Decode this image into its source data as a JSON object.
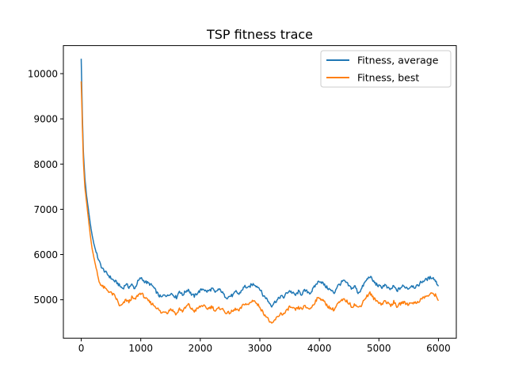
{
  "chart_data": {
    "type": "line",
    "title": "TSP fitness trace",
    "xlabel": "",
    "ylabel": "",
    "xlim": [
      -300,
      6300
    ],
    "ylim": [
      4150,
      10620
    ],
    "x_ticks": [
      0,
      1000,
      2000,
      3000,
      4000,
      5000,
      6000
    ],
    "y_ticks": [
      5000,
      6000,
      7000,
      8000,
      9000,
      10000
    ],
    "grid": false,
    "legend_position": "top-right",
    "series": [
      {
        "name": "Fitness, average",
        "color": "#1f77b4",
        "points": [
          [
            0,
            10330
          ],
          [
            15,
            9300
          ],
          [
            35,
            8300
          ],
          [
            60,
            7700
          ],
          [
            90,
            7300
          ],
          [
            120,
            7000
          ],
          [
            150,
            6700
          ],
          [
            180,
            6450
          ],
          [
            210,
            6250
          ],
          [
            250,
            6050
          ],
          [
            300,
            5850
          ],
          [
            350,
            5700
          ],
          [
            400,
            5620
          ],
          [
            450,
            5550
          ],
          [
            500,
            5480
          ],
          [
            550,
            5420
          ],
          [
            600,
            5380
          ],
          [
            650,
            5300
          ],
          [
            700,
            5250
          ],
          [
            750,
            5350
          ],
          [
            800,
            5280
          ],
          [
            850,
            5330
          ],
          [
            900,
            5250
          ],
          [
            950,
            5400
          ],
          [
            1000,
            5480
          ],
          [
            1050,
            5420
          ],
          [
            1100,
            5380
          ],
          [
            1150,
            5350
          ],
          [
            1200,
            5300
          ],
          [
            1250,
            5200
          ],
          [
            1300,
            5100
          ],
          [
            1350,
            5050
          ],
          [
            1400,
            5120
          ],
          [
            1450,
            5080
          ],
          [
            1500,
            5150
          ],
          [
            1550,
            5100
          ],
          [
            1600,
            5050
          ],
          [
            1650,
            5200
          ],
          [
            1700,
            5100
          ],
          [
            1750,
            5180
          ],
          [
            1800,
            5230
          ],
          [
            1850,
            5120
          ],
          [
            1900,
            5080
          ],
          [
            1950,
            5150
          ],
          [
            2000,
            5200
          ],
          [
            2050,
            5250
          ],
          [
            2100,
            5180
          ],
          [
            2150,
            5200
          ],
          [
            2200,
            5250
          ],
          [
            2250,
            5150
          ],
          [
            2300,
            5230
          ],
          [
            2350,
            5200
          ],
          [
            2400,
            5100
          ],
          [
            2450,
            5050
          ],
          [
            2500,
            5080
          ],
          [
            2550,
            5100
          ],
          [
            2600,
            5180
          ],
          [
            2650,
            5120
          ],
          [
            2700,
            5220
          ],
          [
            2750,
            5300
          ],
          [
            2800,
            5250
          ],
          [
            2850,
            5320
          ],
          [
            2900,
            5350
          ],
          [
            2950,
            5300
          ],
          [
            3000,
            5250
          ],
          [
            3050,
            5100
          ],
          [
            3100,
            5050
          ],
          [
            3150,
            4950
          ],
          [
            3200,
            4870
          ],
          [
            3250,
            4950
          ],
          [
            3300,
            5000
          ],
          [
            3350,
            5080
          ],
          [
            3400,
            5050
          ],
          [
            3450,
            5150
          ],
          [
            3500,
            5200
          ],
          [
            3550,
            5150
          ],
          [
            3600,
            5100
          ],
          [
            3650,
            5180
          ],
          [
            3700,
            5120
          ],
          [
            3750,
            5200
          ],
          [
            3800,
            5180
          ],
          [
            3850,
            5150
          ],
          [
            3900,
            5250
          ],
          [
            3950,
            5350
          ],
          [
            4000,
            5420
          ],
          [
            4050,
            5380
          ],
          [
            4100,
            5300
          ],
          [
            4150,
            5250
          ],
          [
            4200,
            5200
          ],
          [
            4250,
            5150
          ],
          [
            4300,
            5300
          ],
          [
            4350,
            5350
          ],
          [
            4400,
            5420
          ],
          [
            4450,
            5380
          ],
          [
            4500,
            5300
          ],
          [
            4550,
            5250
          ],
          [
            4600,
            5300
          ],
          [
            4650,
            5150
          ],
          [
            4700,
            5220
          ],
          [
            4750,
            5350
          ],
          [
            4800,
            5450
          ],
          [
            4850,
            5520
          ],
          [
            4900,
            5420
          ],
          [
            4950,
            5350
          ],
          [
            5000,
            5300
          ],
          [
            5050,
            5280
          ],
          [
            5100,
            5330
          ],
          [
            5150,
            5250
          ],
          [
            5200,
            5230
          ],
          [
            5250,
            5300
          ],
          [
            5300,
            5200
          ],
          [
            5350,
            5250
          ],
          [
            5400,
            5300
          ],
          [
            5450,
            5280
          ],
          [
            5500,
            5250
          ],
          [
            5550,
            5320
          ],
          [
            5600,
            5280
          ],
          [
            5650,
            5300
          ],
          [
            5700,
            5380
          ],
          [
            5750,
            5420
          ],
          [
            5800,
            5450
          ],
          [
            5850,
            5480
          ],
          [
            5900,
            5500
          ],
          [
            5950,
            5420
          ],
          [
            6000,
            5300
          ]
        ]
      },
      {
        "name": "Fitness, best",
        "color": "#ff7f0e",
        "points": [
          [
            0,
            9830
          ],
          [
            15,
            9050
          ],
          [
            35,
            8100
          ],
          [
            60,
            7500
          ],
          [
            90,
            7150
          ],
          [
            120,
            6800
          ],
          [
            150,
            6450
          ],
          [
            180,
            6150
          ],
          [
            210,
            5950
          ],
          [
            250,
            5700
          ],
          [
            300,
            5400
          ],
          [
            350,
            5300
          ],
          [
            400,
            5250
          ],
          [
            450,
            5200
          ],
          [
            500,
            5150
          ],
          [
            550,
            5100
          ],
          [
            600,
            5000
          ],
          [
            650,
            4850
          ],
          [
            700,
            4900
          ],
          [
            750,
            5000
          ],
          [
            800,
            4950
          ],
          [
            850,
            5050
          ],
          [
            900,
            5000
          ],
          [
            950,
            5100
          ],
          [
            1000,
            5150
          ],
          [
            1050,
            5080
          ],
          [
            1100,
            5000
          ],
          [
            1150,
            4950
          ],
          [
            1200,
            4900
          ],
          [
            1250,
            4850
          ],
          [
            1300,
            4780
          ],
          [
            1350,
            4700
          ],
          [
            1400,
            4750
          ],
          [
            1450,
            4720
          ],
          [
            1500,
            4800
          ],
          [
            1550,
            4750
          ],
          [
            1600,
            4680
          ],
          [
            1650,
            4800
          ],
          [
            1700,
            4750
          ],
          [
            1750,
            4820
          ],
          [
            1800,
            4900
          ],
          [
            1850,
            4800
          ],
          [
            1900,
            4750
          ],
          [
            1950,
            4800
          ],
          [
            2000,
            4850
          ],
          [
            2050,
            4880
          ],
          [
            2100,
            4800
          ],
          [
            2150,
            4820
          ],
          [
            2200,
            4850
          ],
          [
            2250,
            4750
          ],
          [
            2300,
            4800
          ],
          [
            2350,
            4820
          ],
          [
            2400,
            4750
          ],
          [
            2450,
            4700
          ],
          [
            2500,
            4720
          ],
          [
            2550,
            4750
          ],
          [
            2600,
            4800
          ],
          [
            2650,
            4750
          ],
          [
            2700,
            4850
          ],
          [
            2750,
            4920
          ],
          [
            2800,
            4880
          ],
          [
            2850,
            4950
          ],
          [
            2900,
            5000
          ],
          [
            2950,
            4900
          ],
          [
            3000,
            4850
          ],
          [
            3050,
            4720
          ],
          [
            3100,
            4650
          ],
          [
            3150,
            4550
          ],
          [
            3200,
            4450
          ],
          [
            3250,
            4550
          ],
          [
            3300,
            4620
          ],
          [
            3350,
            4700
          ],
          [
            3400,
            4680
          ],
          [
            3450,
            4750
          ],
          [
            3500,
            4850
          ],
          [
            3550,
            4800
          ],
          [
            3600,
            4780
          ],
          [
            3650,
            4820
          ],
          [
            3700,
            4800
          ],
          [
            3750,
            4850
          ],
          [
            3800,
            4820
          ],
          [
            3850,
            4800
          ],
          [
            3900,
            4900
          ],
          [
            3950,
            5000
          ],
          [
            4000,
            5050
          ],
          [
            4050,
            5000
          ],
          [
            4100,
            4920
          ],
          [
            4150,
            4850
          ],
          [
            4200,
            4800
          ],
          [
            4250,
            4780
          ],
          [
            4300,
            4900
          ],
          [
            4350,
            4950
          ],
          [
            4400,
            5000
          ],
          [
            4450,
            4980
          ],
          [
            4500,
            4920
          ],
          [
            4550,
            4850
          ],
          [
            4600,
            4900
          ],
          [
            4650,
            4820
          ],
          [
            4700,
            4880
          ],
          [
            4750,
            5000
          ],
          [
            4800,
            5080
          ],
          [
            4850,
            5150
          ],
          [
            4900,
            5050
          ],
          [
            4950,
            4980
          ],
          [
            5000,
            4950
          ],
          [
            5050,
            4900
          ],
          [
            5100,
            4980
          ],
          [
            5150,
            4920
          ],
          [
            5200,
            4880
          ],
          [
            5250,
            4950
          ],
          [
            5300,
            4850
          ],
          [
            5350,
            4900
          ],
          [
            5400,
            4950
          ],
          [
            5450,
            4920
          ],
          [
            5500,
            4900
          ],
          [
            5550,
            4950
          ],
          [
            5600,
            4920
          ],
          [
            5650,
            4950
          ],
          [
            5700,
            5000
          ],
          [
            5750,
            5050
          ],
          [
            5800,
            5080
          ],
          [
            5850,
            5100
          ],
          [
            5900,
            5150
          ],
          [
            5950,
            5100
          ],
          [
            6000,
            4980
          ]
        ]
      }
    ]
  }
}
